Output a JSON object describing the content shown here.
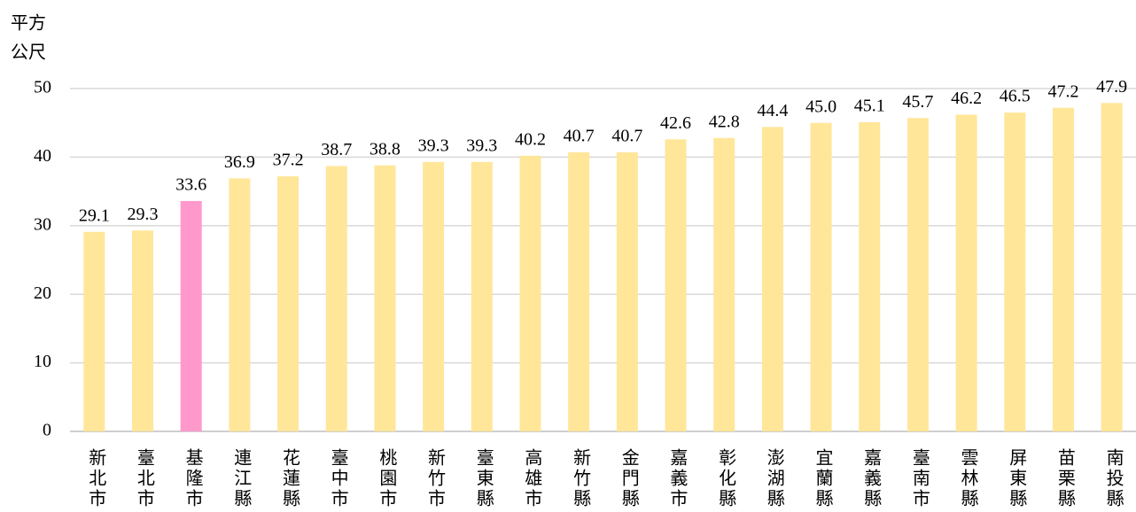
{
  "chart_data": {
    "type": "bar",
    "ylabel_lines": [
      "平方",
      "公尺"
    ],
    "categories": [
      "新北市",
      "臺北市",
      "基隆市",
      "連江縣",
      "花蓮縣",
      "臺中市",
      "桃園市",
      "新竹市",
      "臺東縣",
      "高雄市",
      "新竹縣",
      "金門縣",
      "嘉義市",
      "彰化縣",
      "澎湖縣",
      "宜蘭縣",
      "嘉義縣",
      "臺南市",
      "雲林縣",
      "屏東縣",
      "苗栗縣",
      "南投縣"
    ],
    "values": [
      29.1,
      29.3,
      33.6,
      36.9,
      37.2,
      38.7,
      38.8,
      39.3,
      39.3,
      40.2,
      40.7,
      40.7,
      42.6,
      42.8,
      44.4,
      45.0,
      45.1,
      45.7,
      46.2,
      46.5,
      47.2,
      47.9
    ],
    "value_labels": [
      "29.1",
      "29.3",
      "33.6",
      "36.9",
      "37.2",
      "38.7",
      "38.8",
      "39.3",
      "39.3",
      "40.2",
      "40.7",
      "40.7",
      "42.6",
      "42.8",
      "44.4",
      "45.0",
      "45.1",
      "45.7",
      "46.2",
      "46.5",
      "47.2",
      "47.9"
    ],
    "colors": [
      "#ffe699",
      "#ffe699",
      "#ff99cc",
      "#ffe699",
      "#ffe699",
      "#ffe699",
      "#ffe699",
      "#ffe699",
      "#ffe699",
      "#ffe699",
      "#ffe699",
      "#ffe699",
      "#ffe699",
      "#ffe699",
      "#ffe699",
      "#ffe699",
      "#ffe699",
      "#ffe699",
      "#ffe699",
      "#ffe699",
      "#ffe699",
      "#ffe699"
    ],
    "label_colors": [
      "#000000",
      "#1a73e8",
      "#000000",
      "#1a73e8",
      "#000000",
      "#1a73e8",
      "#000000",
      "#1a73e8",
      "#000000",
      "#1a73e8",
      "#000000",
      "#1a73e8",
      "#000000",
      "#1a73e8",
      "#000000",
      "#1a73e8",
      "#000000",
      "#1a73e8",
      "#000000",
      "#1a73e8",
      "#000000",
      "#1a73e8"
    ],
    "ylim": [
      0,
      50
    ],
    "yticks": [
      0,
      10,
      20,
      30,
      40,
      50
    ],
    "grid": true
  }
}
